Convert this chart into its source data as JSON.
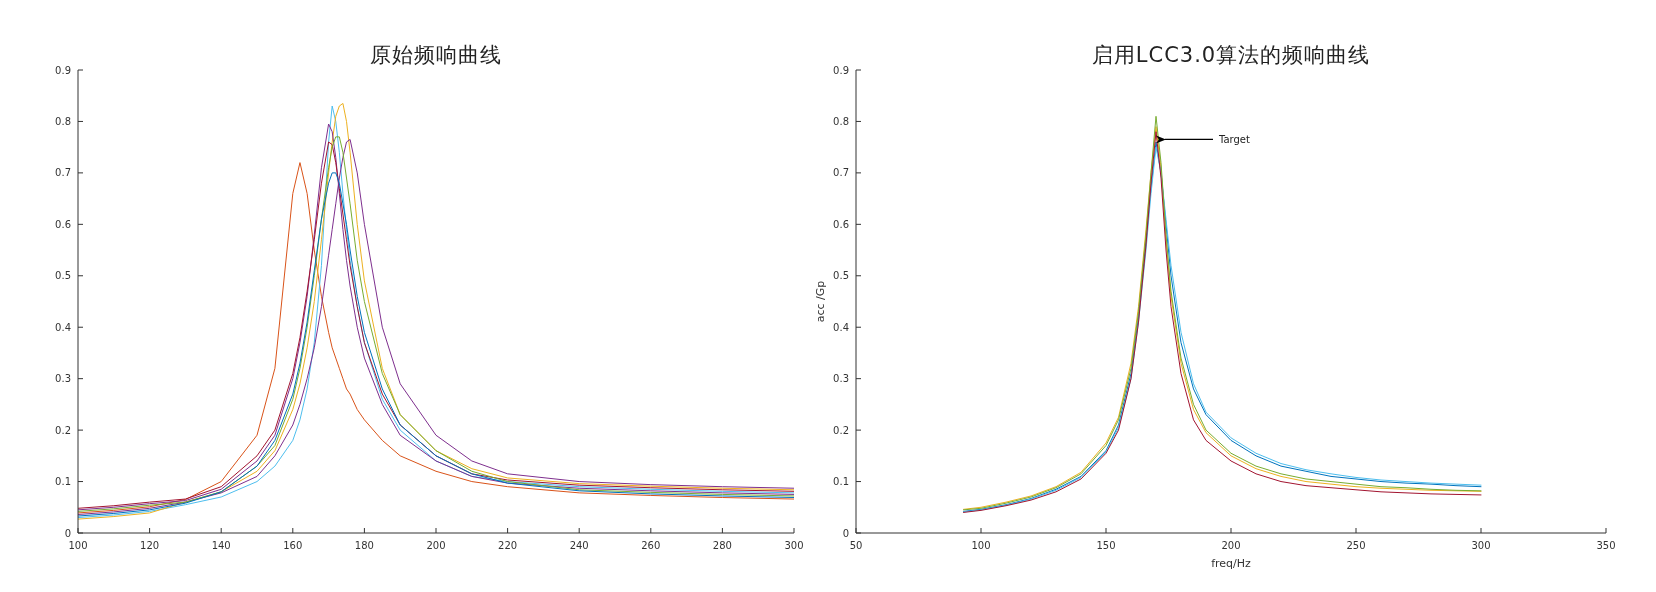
{
  "chart_data": [
    {
      "type": "line",
      "title": "原始频响曲线",
      "xlim": [
        100,
        300
      ],
      "ylim": [
        0,
        0.9
      ],
      "xticks": [
        100,
        120,
        140,
        160,
        180,
        200,
        220,
        240,
        260,
        280,
        300
      ],
      "yticks": [
        0,
        0.1,
        0.2,
        0.3,
        0.4,
        0.5,
        0.6,
        0.7,
        0.8,
        0.9
      ],
      "x": [
        100,
        110,
        120,
        130,
        140,
        150,
        155,
        160,
        162,
        164,
        166,
        168,
        170,
        171,
        172,
        173,
        174,
        175,
        176,
        178,
        180,
        185,
        190,
        200,
        210,
        220,
        240,
        260,
        280,
        300
      ],
      "series": [
        {
          "color": "#d95319",
          "values": [
            0.039,
            0.044,
            0.051,
            0.065,
            0.1,
            0.19,
            0.32,
            0.66,
            0.72,
            0.66,
            0.55,
            0.46,
            0.39,
            0.36,
            0.34,
            0.32,
            0.3,
            0.28,
            0.27,
            0.24,
            0.22,
            0.18,
            0.15,
            0.12,
            0.1,
            0.09,
            0.078,
            0.073,
            0.069,
            0.066
          ]
        },
        {
          "color": "#4dbeee",
          "values": [
            0.03,
            0.035,
            0.042,
            0.055,
            0.07,
            0.1,
            0.13,
            0.18,
            0.22,
            0.28,
            0.37,
            0.52,
            0.76,
            0.83,
            0.8,
            0.74,
            0.66,
            0.59,
            0.53,
            0.44,
            0.37,
            0.26,
            0.2,
            0.14,
            0.11,
            0.1,
            0.09,
            0.085,
            0.081,
            0.078
          ]
        },
        {
          "color": "#edb120",
          "values": [
            0.027,
            0.032,
            0.039,
            0.06,
            0.08,
            0.12,
            0.16,
            0.24,
            0.29,
            0.36,
            0.45,
            0.57,
            0.7,
            0.76,
            0.81,
            0.83,
            0.835,
            0.8,
            0.74,
            0.6,
            0.49,
            0.32,
            0.23,
            0.16,
            0.125,
            0.107,
            0.096,
            0.091,
            0.087,
            0.084
          ]
        },
        {
          "color": "#7e2f8e",
          "values": [
            0.045,
            0.05,
            0.057,
            0.063,
            0.085,
            0.14,
            0.19,
            0.3,
            0.37,
            0.46,
            0.58,
            0.71,
            0.795,
            0.78,
            0.73,
            0.66,
            0.59,
            0.53,
            0.48,
            0.4,
            0.34,
            0.25,
            0.19,
            0.14,
            0.11,
            0.097,
            0.087,
            0.082,
            0.078,
            0.075
          ]
        },
        {
          "color": "#a2142f",
          "values": [
            0.048,
            0.053,
            0.06,
            0.066,
            0.09,
            0.15,
            0.2,
            0.31,
            0.38,
            0.47,
            0.57,
            0.68,
            0.76,
            0.755,
            0.72,
            0.67,
            0.62,
            0.57,
            0.52,
            0.44,
            0.37,
            0.27,
            0.21,
            0.15,
            0.115,
            0.103,
            0.093,
            0.088,
            0.084,
            0.081
          ]
        },
        {
          "color": "#7e2f8e",
          "values": [
            0.036,
            0.041,
            0.048,
            0.06,
            0.078,
            0.11,
            0.15,
            0.21,
            0.25,
            0.3,
            0.36,
            0.44,
            0.54,
            0.59,
            0.64,
            0.69,
            0.73,
            0.76,
            0.765,
            0.7,
            0.6,
            0.4,
            0.29,
            0.19,
            0.14,
            0.115,
            0.1,
            0.094,
            0.09,
            0.087
          ]
        },
        {
          "color": "#77ac30",
          "values": [
            0.042,
            0.047,
            0.054,
            0.06,
            0.08,
            0.13,
            0.17,
            0.26,
            0.32,
            0.4,
            0.5,
            0.61,
            0.71,
            0.75,
            0.77,
            0.77,
            0.74,
            0.69,
            0.64,
            0.53,
            0.45,
            0.31,
            0.23,
            0.16,
            0.12,
            0.1,
            0.084,
            0.079,
            0.075,
            0.072
          ]
        },
        {
          "color": "#0072bd",
          "values": [
            0.033,
            0.038,
            0.045,
            0.058,
            0.08,
            0.13,
            0.18,
            0.27,
            0.33,
            0.41,
            0.51,
            0.61,
            0.68,
            0.7,
            0.7,
            0.68,
            0.64,
            0.6,
            0.55,
            0.46,
            0.39,
            0.28,
            0.21,
            0.15,
            0.115,
            0.097,
            0.082,
            0.076,
            0.072,
            0.069
          ]
        }
      ]
    },
    {
      "type": "line",
      "title": "启用LCC3.0算法的频响曲线",
      "xlabel": "freq/Hz",
      "ylabel": "acc /Gp",
      "xlim": [
        50,
        350
      ],
      "ylim": [
        0,
        0.9
      ],
      "xticks": [
        50,
        100,
        150,
        200,
        250,
        300,
        350
      ],
      "yticks": [
        0,
        0.1,
        0.2,
        0.3,
        0.4,
        0.5,
        0.6,
        0.7,
        0.8,
        0.9
      ],
      "annotations": [
        {
          "text": "Target",
          "x": 172,
          "y": 0.765
        }
      ],
      "x": [
        93,
        100,
        110,
        120,
        130,
        140,
        150,
        155,
        160,
        163,
        166,
        168,
        170,
        172,
        174,
        176,
        180,
        185,
        190,
        200,
        210,
        220,
        230,
        240,
        250,
        260,
        270,
        280,
        290,
        300
      ],
      "series": [
        {
          "color": "#0072bd",
          "values": [
            0.042,
            0.046,
            0.055,
            0.067,
            0.085,
            0.11,
            0.16,
            0.21,
            0.31,
            0.42,
            0.57,
            0.67,
            0.76,
            0.7,
            0.6,
            0.5,
            0.37,
            0.28,
            0.23,
            0.18,
            0.15,
            0.13,
            0.12,
            0.11,
            0.105,
            0.1,
            0.097,
            0.095,
            0.092,
            0.09
          ]
        },
        {
          "color": "#edb120",
          "values": [
            0.046,
            0.05,
            0.06,
            0.072,
            0.09,
            0.118,
            0.175,
            0.225,
            0.33,
            0.44,
            0.59,
            0.7,
            0.79,
            0.71,
            0.57,
            0.46,
            0.33,
            0.24,
            0.195,
            0.15,
            0.125,
            0.11,
            0.1,
            0.095,
            0.09,
            0.087,
            0.085,
            0.083,
            0.082,
            0.081
          ]
        },
        {
          "color": "#4dbeee",
          "values": [
            0.041,
            0.045,
            0.054,
            0.066,
            0.083,
            0.108,
            0.158,
            0.205,
            0.3,
            0.41,
            0.55,
            0.66,
            0.75,
            0.7,
            0.61,
            0.52,
            0.39,
            0.29,
            0.235,
            0.185,
            0.155,
            0.135,
            0.123,
            0.115,
            0.108,
            0.103,
            0.1,
            0.097,
            0.095,
            0.093
          ]
        },
        {
          "color": "#77ac30",
          "values": [
            0.045,
            0.048,
            0.058,
            0.07,
            0.088,
            0.115,
            0.17,
            0.22,
            0.32,
            0.43,
            0.58,
            0.7,
            0.81,
            0.72,
            0.58,
            0.47,
            0.34,
            0.25,
            0.2,
            0.155,
            0.13,
            0.115,
            0.105,
            0.1,
            0.095,
            0.09,
            0.088,
            0.085,
            0.083,
            0.082
          ]
        },
        {
          "color": "#a2142f",
          "values": [
            0.04,
            0.044,
            0.053,
            0.064,
            0.08,
            0.105,
            0.155,
            0.2,
            0.3,
            0.41,
            0.56,
            0.68,
            0.78,
            0.69,
            0.55,
            0.44,
            0.31,
            0.22,
            0.18,
            0.14,
            0.115,
            0.1,
            0.092,
            0.088,
            0.084,
            0.08,
            0.078,
            0.076,
            0.075,
            0.074
          ]
        }
      ]
    }
  ]
}
